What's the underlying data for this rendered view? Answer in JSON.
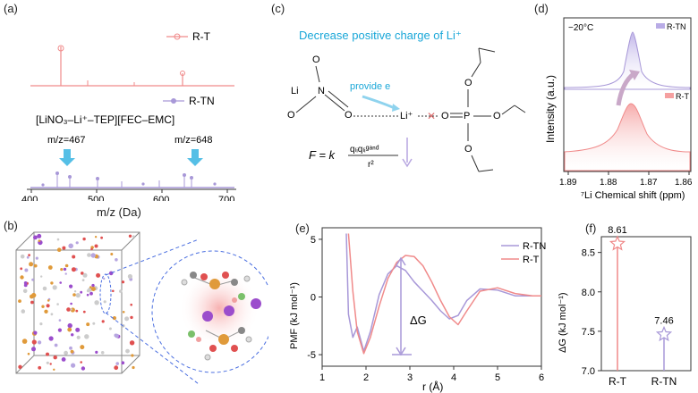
{
  "panels": {
    "a": {
      "label": "(a)",
      "legend_rt": "R-T",
      "legend_rtn": "R-TN",
      "formula": "[LiNO₃–Li⁺–TEP][FEC–EMC]",
      "peak1": "m/z=467",
      "peak2": "m/z=648",
      "xlabel": "m/z (Da)",
      "xticks": [
        "400",
        "500",
        "600",
        "700"
      ]
    },
    "b": {
      "label": "(b)"
    },
    "c": {
      "label": "(c)",
      "headline": "Decrease positive charge of Li⁺",
      "provide": "provide e",
      "li_text": "Li",
      "n_text": "N",
      "o_text": "O",
      "li_plus": "Li⁺",
      "p_text": "P",
      "eq_lhs": "F = k",
      "eq_num": "qₗᵢqₗᵢᵍᵃⁿᵈ",
      "eq_den": "r²"
    },
    "d": {
      "label": "(d)",
      "temp": "−20°C",
      "legend_rtn": "R-TN",
      "legend_rt": "R-T",
      "ylabel": "Intensity (a.u.)",
      "xlabel": "⁷Li Chemical shift (ppm)",
      "xticks": [
        "1.89",
        "1.88",
        "1.87",
        "1.86"
      ]
    },
    "e": {
      "label": "(e)",
      "legend_rtn": "R-TN",
      "legend_rt": "R-T",
      "ylabel": "PMF (kJ mol⁻¹)",
      "xlabel": "r (Å)",
      "dg": "ΔG",
      "xticks": [
        "1",
        "2",
        "3",
        "4",
        "5",
        "6"
      ],
      "yticks": [
        "5",
        "0",
        "-5"
      ]
    },
    "f": {
      "label": "(f)",
      "ylabel": "ΔG (kJ mol⁻¹)",
      "yticks": [
        "8.5",
        "8.0",
        "7.5",
        "7.0"
      ],
      "categories": [
        "R-T",
        "R-TN"
      ],
      "values_text": [
        "8.61",
        "7.46"
      ]
    }
  },
  "colors": {
    "rt": "#f08a8a",
    "rtn": "#a898d8",
    "cyan": "#1aa7d8",
    "axis": "#333333"
  },
  "chart_data": [
    {
      "type": "bar",
      "title": "",
      "xlabel": "",
      "ylabel": "ΔG (kJ mol⁻¹)",
      "categories": [
        "R-T",
        "R-TN"
      ],
      "values": [
        8.61,
        7.46
      ],
      "ylim": [
        7.0,
        8.7
      ]
    },
    {
      "type": "line",
      "xlabel": "r (Å)",
      "ylabel": "PMF (kJ mol⁻¹)",
      "xlim": [
        1,
        6
      ],
      "ylim": [
        -6,
        6
      ],
      "series": [
        {
          "name": "R-TN",
          "x": [
            1.55,
            1.6,
            1.7,
            1.8,
            1.95,
            2.1,
            2.3,
            2.5,
            2.7,
            2.9,
            3.1,
            3.3,
            3.5,
            3.7,
            3.9,
            4.1,
            4.3,
            4.6,
            5.0,
            5.4,
            5.8,
            6.0
          ],
          "y": [
            5.5,
            -1.5,
            -3.5,
            -2.6,
            -4.7,
            -3.0,
            0.2,
            2.0,
            2.7,
            2.3,
            1.3,
            0.5,
            -0.3,
            -1.2,
            -1.9,
            -1.6,
            -0.3,
            0.7,
            0.6,
            0.1,
            0.1,
            0.1
          ]
        },
        {
          "name": "R-T",
          "x": [
            1.6,
            1.7,
            1.8,
            1.95,
            2.1,
            2.3,
            2.5,
            2.7,
            2.9,
            3.1,
            3.3,
            3.5,
            3.7,
            3.9,
            4.1,
            4.3,
            4.6,
            5.0,
            5.4,
            5.8,
            6.0
          ],
          "y": [
            5.5,
            0.5,
            -3.0,
            -4.9,
            -3.5,
            -0.8,
            1.6,
            3.0,
            3.6,
            3.5,
            2.7,
            1.3,
            -0.3,
            -1.7,
            -2.4,
            -1.2,
            0.5,
            0.8,
            0.3,
            0.1,
            0.1
          ]
        }
      ]
    }
  ]
}
